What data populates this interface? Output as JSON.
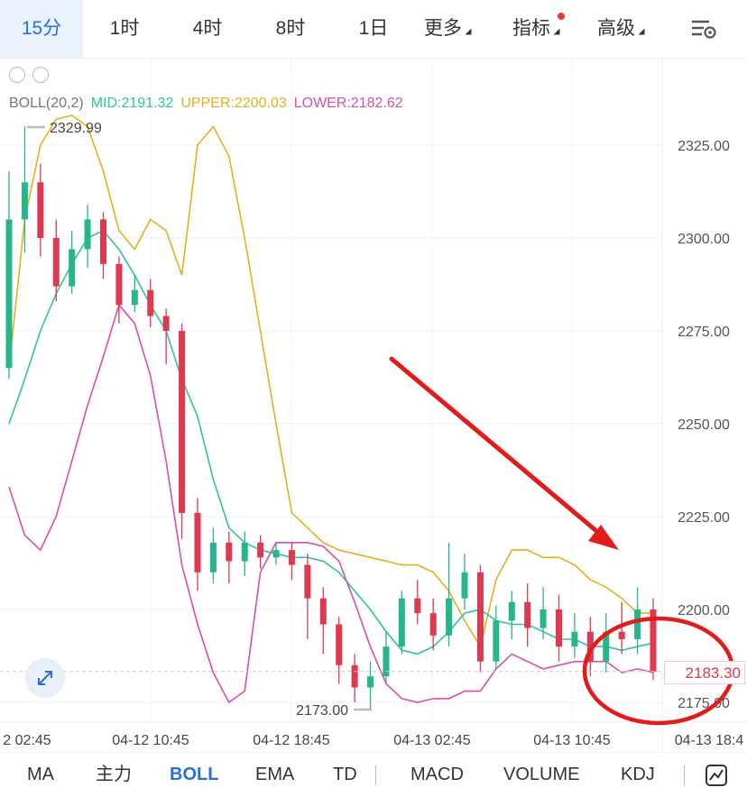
{
  "timeframes": {
    "items": [
      "15分",
      "1时",
      "4时",
      "8时",
      "1日",
      "更多",
      "指标",
      "高级"
    ],
    "active_index": 0
  },
  "legend": {
    "boll": "BOLL(20,2)",
    "mid": "MID:2191.32",
    "upper": "UPPER:2200.03",
    "lower": "LOWER:2182.62"
  },
  "colors": {
    "up": "#27b58c",
    "down": "#e0384f",
    "mid": "#2ec4a0",
    "upper": "#e5b01e",
    "lower": "#d94fa5",
    "accent": "#2b6fd6",
    "annotation": "#e31b1b"
  },
  "chart_data": {
    "type": "candlestick",
    "y_ticks": [
      "2325.00",
      "2300.00",
      "2275.00",
      "2250.00",
      "2225.00",
      "2200.00",
      "2175.00"
    ],
    "y_tick_values": [
      2325,
      2300,
      2275,
      2250,
      2225,
      2200,
      2175
    ],
    "ylim": [
      2160,
      2345
    ],
    "x_ticks": [
      "2 02:45",
      "04-12 10:45",
      "04-12 18:45",
      "04-13 02:45",
      "04-13 10:45",
      "04-13 18:4"
    ],
    "high_label": "2329.99",
    "low_label": "2173.00",
    "last_price": "2183.30",
    "upper": [
      2265,
      2305,
      2325,
      2332,
      2333,
      2330,
      2318,
      2302,
      2297,
      2305,
      2302,
      2290,
      2325,
      2330,
      2322,
      2300,
      2275,
      2250,
      2226,
      2222,
      2218,
      2216,
      2215,
      2214,
      2213,
      2212,
      2212,
      2210,
      2205,
      2197,
      2190,
      2208,
      2216,
      2216,
      2214,
      2214,
      2212,
      2208,
      2206,
      2203,
      2199,
      2199
    ],
    "mid": [
      2250,
      2262,
      2275,
      2285,
      2293,
      2300,
      2302,
      2297,
      2290,
      2282,
      2275,
      2262,
      2252,
      2235,
      2222,
      2218,
      2216,
      2215,
      2214,
      2214,
      2213,
      2210,
      2205,
      2200,
      2194,
      2189,
      2188,
      2190,
      2194,
      2199,
      2200,
      2197,
      2196,
      2196,
      2194,
      2192,
      2192,
      2190,
      2190,
      2189,
      2190,
      2191
    ],
    "lower": [
      2233,
      2220,
      2216,
      2225,
      2240,
      2255,
      2268,
      2282,
      2277,
      2263,
      2240,
      2212,
      2196,
      2183,
      2175,
      2178,
      2210,
      2218,
      2218,
      2218,
      2217,
      2213,
      2202,
      2190,
      2180,
      2176,
      2175,
      2176,
      2176,
      2178,
      2178,
      2184,
      2188,
      2186,
      2184,
      2185,
      2186,
      2186,
      2186,
      2183,
      2184,
      2183
    ],
    "candles": [
      [
        2265,
        2305,
        2318,
        2262
      ],
      [
        2305,
        2315,
        2330,
        2296
      ],
      [
        2315,
        2300,
        2320,
        2295
      ],
      [
        2300,
        2287,
        2305,
        2283
      ],
      [
        2287,
        2297,
        2302,
        2285
      ],
      [
        2297,
        2305,
        2309,
        2292
      ],
      [
        2305,
        2293,
        2307,
        2289
      ],
      [
        2293,
        2282,
        2295,
        2277
      ],
      [
        2282,
        2286,
        2290,
        2280
      ],
      [
        2286,
        2279,
        2289,
        2276
      ],
      [
        2279,
        2275,
        2281,
        2266
      ],
      [
        2275,
        2226,
        2277,
        2219
      ],
      [
        2226,
        2210,
        2230,
        2205
      ],
      [
        2210,
        2218,
        2222,
        2207
      ],
      [
        2218,
        2213,
        2221,
        2207
      ],
      [
        2213,
        2218,
        2221,
        2209
      ],
      [
        2218,
        2214,
        2220,
        2211
      ],
      [
        2214,
        2216,
        2218,
        2212
      ],
      [
        2216,
        2212,
        2218,
        2208
      ],
      [
        2212,
        2203,
        2215,
        2192
      ],
      [
        2203,
        2196,
        2206,
        2188
      ],
      [
        2196,
        2185,
        2198,
        2180
      ],
      [
        2185,
        2179,
        2188,
        2175
      ],
      [
        2179,
        2182,
        2186,
        2173
      ],
      [
        2182,
        2190,
        2194,
        2180
      ],
      [
        2190,
        2203,
        2205,
        2188
      ],
      [
        2203,
        2199,
        2208,
        2196
      ],
      [
        2199,
        2193,
        2203,
        2189
      ],
      [
        2193,
        2203,
        2218,
        2190
      ],
      [
        2203,
        2210,
        2215,
        2200
      ],
      [
        2210,
        2186,
        2212,
        2183
      ],
      [
        2186,
        2197,
        2201,
        2184
      ],
      [
        2197,
        2202,
        2205,
        2192
      ],
      [
        2202,
        2195,
        2207,
        2190
      ],
      [
        2195,
        2200,
        2206,
        2192
      ],
      [
        2200,
        2190,
        2204,
        2186
      ],
      [
        2190,
        2194,
        2199,
        2187
      ],
      [
        2194,
        2186,
        2198,
        2182
      ],
      [
        2186,
        2194,
        2199,
        2183
      ],
      [
        2194,
        2192,
        2202,
        2188
      ],
      [
        2192,
        2200,
        2206,
        2188
      ],
      [
        2200,
        2183.3,
        2203,
        2181
      ]
    ]
  },
  "bottom_bar": {
    "items": [
      "MA",
      "主力",
      "BOLL",
      "EMA",
      "TD",
      "MACD",
      "VOLUME",
      "KDJ"
    ],
    "active_index": 2
  }
}
